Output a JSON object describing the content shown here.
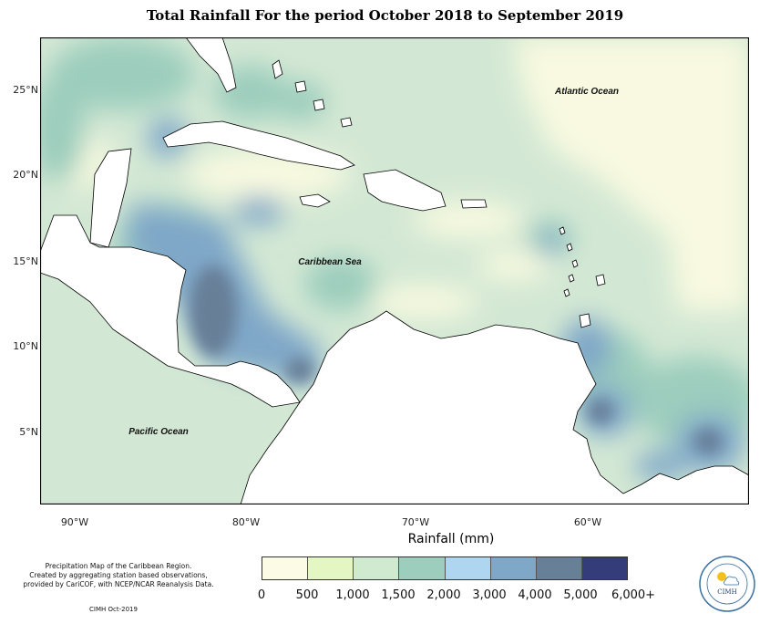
{
  "title": "Total Rainfall For the period October 2018 to September 2019",
  "axis": {
    "xlabel": "Rainfall (mm)",
    "xticks": [
      "90°W",
      "80°W",
      "70°W",
      "60°W"
    ],
    "yticks": [
      "25°N",
      "20°N",
      "15°N",
      "10°N",
      "5°N"
    ]
  },
  "places": {
    "atlantic": "Atlantic Ocean",
    "caribbean": "Caribbean Sea",
    "pacific": "Pacific Ocean"
  },
  "legend": {
    "labels": [
      "0",
      "500",
      "1,000",
      "1,500",
      "2,000",
      "3,000",
      "4,000",
      "5,000",
      "6,000+"
    ],
    "colors": [
      "#fcfbe6",
      "#e4f6c2",
      "#d0ead0",
      "#9ccdbd",
      "#aed6f0",
      "#7fa7c8",
      "#687f98",
      "#353c7a"
    ]
  },
  "notes": {
    "line1": "Precipitation Map of the Caribbean Region.",
    "line2": "Created by aggregating station based observations,",
    "line3": "provided by CariCOF, with NCEP/NCAR Reanalysis Data.",
    "credit": "CIMH Oct-2019"
  },
  "logo": {
    "text": "CIMH"
  }
}
